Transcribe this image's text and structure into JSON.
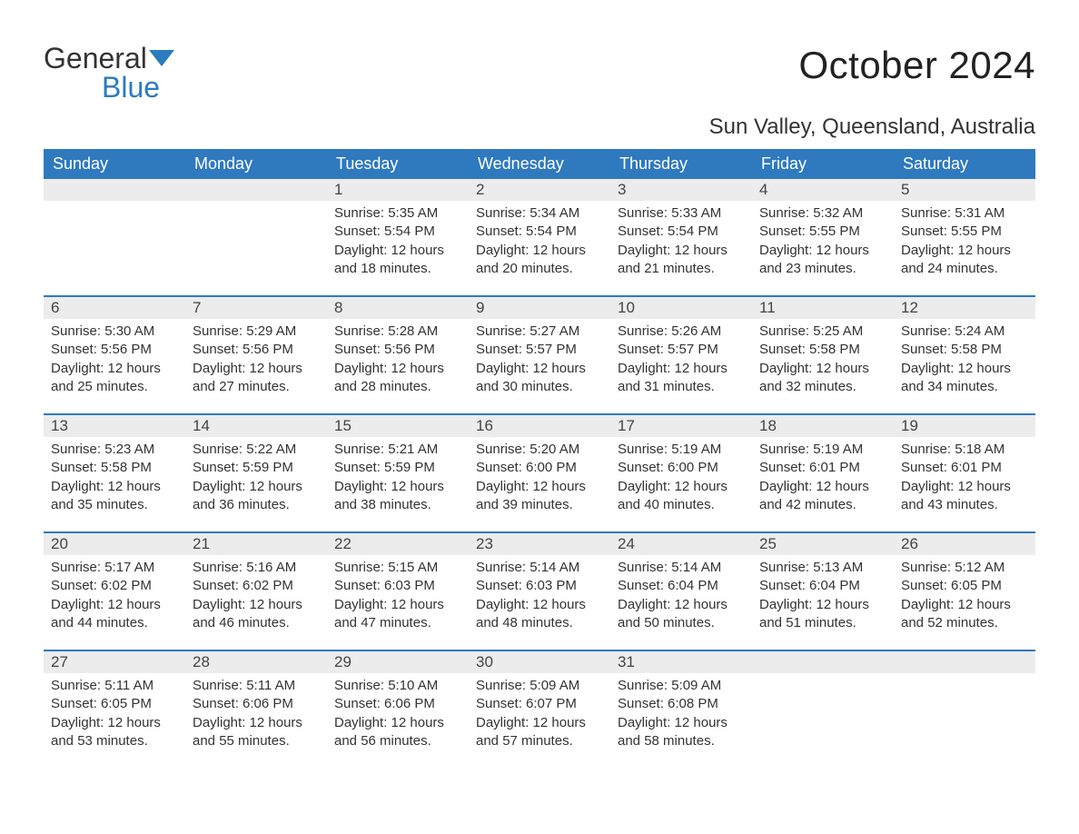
{
  "brand": {
    "part1": "General",
    "part2": "Blue"
  },
  "title": "October 2024",
  "location": "Sun Valley, Queensland, Australia",
  "colors": {
    "header_bg": "#2f79bf",
    "header_text": "#ffffff",
    "daynum_bg": "#ececec",
    "rule": "#2f79bf",
    "text": "#333333",
    "brand_accent": "#2b7bbf",
    "background": "#ffffff"
  },
  "typography": {
    "title_fontsize": 42,
    "location_fontsize": 24,
    "header_fontsize": 18,
    "daynum_fontsize": 17,
    "body_fontsize": 15,
    "logo_fontsize": 32
  },
  "layout": {
    "columns": 7,
    "rows": 5,
    "leading_blanks": 2,
    "trailing_blanks": 2
  },
  "day_headers": [
    "Sunday",
    "Monday",
    "Tuesday",
    "Wednesday",
    "Thursday",
    "Friday",
    "Saturday"
  ],
  "days": [
    {
      "n": "1",
      "sunrise": "Sunrise: 5:35 AM",
      "sunset": "Sunset: 5:54 PM",
      "daylight1": "Daylight: 12 hours",
      "daylight2": "and 18 minutes."
    },
    {
      "n": "2",
      "sunrise": "Sunrise: 5:34 AM",
      "sunset": "Sunset: 5:54 PM",
      "daylight1": "Daylight: 12 hours",
      "daylight2": "and 20 minutes."
    },
    {
      "n": "3",
      "sunrise": "Sunrise: 5:33 AM",
      "sunset": "Sunset: 5:54 PM",
      "daylight1": "Daylight: 12 hours",
      "daylight2": "and 21 minutes."
    },
    {
      "n": "4",
      "sunrise": "Sunrise: 5:32 AM",
      "sunset": "Sunset: 5:55 PM",
      "daylight1": "Daylight: 12 hours",
      "daylight2": "and 23 minutes."
    },
    {
      "n": "5",
      "sunrise": "Sunrise: 5:31 AM",
      "sunset": "Sunset: 5:55 PM",
      "daylight1": "Daylight: 12 hours",
      "daylight2": "and 24 minutes."
    },
    {
      "n": "6",
      "sunrise": "Sunrise: 5:30 AM",
      "sunset": "Sunset: 5:56 PM",
      "daylight1": "Daylight: 12 hours",
      "daylight2": "and 25 minutes."
    },
    {
      "n": "7",
      "sunrise": "Sunrise: 5:29 AM",
      "sunset": "Sunset: 5:56 PM",
      "daylight1": "Daylight: 12 hours",
      "daylight2": "and 27 minutes."
    },
    {
      "n": "8",
      "sunrise": "Sunrise: 5:28 AM",
      "sunset": "Sunset: 5:56 PM",
      "daylight1": "Daylight: 12 hours",
      "daylight2": "and 28 minutes."
    },
    {
      "n": "9",
      "sunrise": "Sunrise: 5:27 AM",
      "sunset": "Sunset: 5:57 PM",
      "daylight1": "Daylight: 12 hours",
      "daylight2": "and 30 minutes."
    },
    {
      "n": "10",
      "sunrise": "Sunrise: 5:26 AM",
      "sunset": "Sunset: 5:57 PM",
      "daylight1": "Daylight: 12 hours",
      "daylight2": "and 31 minutes."
    },
    {
      "n": "11",
      "sunrise": "Sunrise: 5:25 AM",
      "sunset": "Sunset: 5:58 PM",
      "daylight1": "Daylight: 12 hours",
      "daylight2": "and 32 minutes."
    },
    {
      "n": "12",
      "sunrise": "Sunrise: 5:24 AM",
      "sunset": "Sunset: 5:58 PM",
      "daylight1": "Daylight: 12 hours",
      "daylight2": "and 34 minutes."
    },
    {
      "n": "13",
      "sunrise": "Sunrise: 5:23 AM",
      "sunset": "Sunset: 5:58 PM",
      "daylight1": "Daylight: 12 hours",
      "daylight2": "and 35 minutes."
    },
    {
      "n": "14",
      "sunrise": "Sunrise: 5:22 AM",
      "sunset": "Sunset: 5:59 PM",
      "daylight1": "Daylight: 12 hours",
      "daylight2": "and 36 minutes."
    },
    {
      "n": "15",
      "sunrise": "Sunrise: 5:21 AM",
      "sunset": "Sunset: 5:59 PM",
      "daylight1": "Daylight: 12 hours",
      "daylight2": "and 38 minutes."
    },
    {
      "n": "16",
      "sunrise": "Sunrise: 5:20 AM",
      "sunset": "Sunset: 6:00 PM",
      "daylight1": "Daylight: 12 hours",
      "daylight2": "and 39 minutes."
    },
    {
      "n": "17",
      "sunrise": "Sunrise: 5:19 AM",
      "sunset": "Sunset: 6:00 PM",
      "daylight1": "Daylight: 12 hours",
      "daylight2": "and 40 minutes."
    },
    {
      "n": "18",
      "sunrise": "Sunrise: 5:19 AM",
      "sunset": "Sunset: 6:01 PM",
      "daylight1": "Daylight: 12 hours",
      "daylight2": "and 42 minutes."
    },
    {
      "n": "19",
      "sunrise": "Sunrise: 5:18 AM",
      "sunset": "Sunset: 6:01 PM",
      "daylight1": "Daylight: 12 hours",
      "daylight2": "and 43 minutes."
    },
    {
      "n": "20",
      "sunrise": "Sunrise: 5:17 AM",
      "sunset": "Sunset: 6:02 PM",
      "daylight1": "Daylight: 12 hours",
      "daylight2": "and 44 minutes."
    },
    {
      "n": "21",
      "sunrise": "Sunrise: 5:16 AM",
      "sunset": "Sunset: 6:02 PM",
      "daylight1": "Daylight: 12 hours",
      "daylight2": "and 46 minutes."
    },
    {
      "n": "22",
      "sunrise": "Sunrise: 5:15 AM",
      "sunset": "Sunset: 6:03 PM",
      "daylight1": "Daylight: 12 hours",
      "daylight2": "and 47 minutes."
    },
    {
      "n": "23",
      "sunrise": "Sunrise: 5:14 AM",
      "sunset": "Sunset: 6:03 PM",
      "daylight1": "Daylight: 12 hours",
      "daylight2": "and 48 minutes."
    },
    {
      "n": "24",
      "sunrise": "Sunrise: 5:14 AM",
      "sunset": "Sunset: 6:04 PM",
      "daylight1": "Daylight: 12 hours",
      "daylight2": "and 50 minutes."
    },
    {
      "n": "25",
      "sunrise": "Sunrise: 5:13 AM",
      "sunset": "Sunset: 6:04 PM",
      "daylight1": "Daylight: 12 hours",
      "daylight2": "and 51 minutes."
    },
    {
      "n": "26",
      "sunrise": "Sunrise: 5:12 AM",
      "sunset": "Sunset: 6:05 PM",
      "daylight1": "Daylight: 12 hours",
      "daylight2": "and 52 minutes."
    },
    {
      "n": "27",
      "sunrise": "Sunrise: 5:11 AM",
      "sunset": "Sunset: 6:05 PM",
      "daylight1": "Daylight: 12 hours",
      "daylight2": "and 53 minutes."
    },
    {
      "n": "28",
      "sunrise": "Sunrise: 5:11 AM",
      "sunset": "Sunset: 6:06 PM",
      "daylight1": "Daylight: 12 hours",
      "daylight2": "and 55 minutes."
    },
    {
      "n": "29",
      "sunrise": "Sunrise: 5:10 AM",
      "sunset": "Sunset: 6:06 PM",
      "daylight1": "Daylight: 12 hours",
      "daylight2": "and 56 minutes."
    },
    {
      "n": "30",
      "sunrise": "Sunrise: 5:09 AM",
      "sunset": "Sunset: 6:07 PM",
      "daylight1": "Daylight: 12 hours",
      "daylight2": "and 57 minutes."
    },
    {
      "n": "31",
      "sunrise": "Sunrise: 5:09 AM",
      "sunset": "Sunset: 6:08 PM",
      "daylight1": "Daylight: 12 hours",
      "daylight2": "and 58 minutes."
    }
  ]
}
